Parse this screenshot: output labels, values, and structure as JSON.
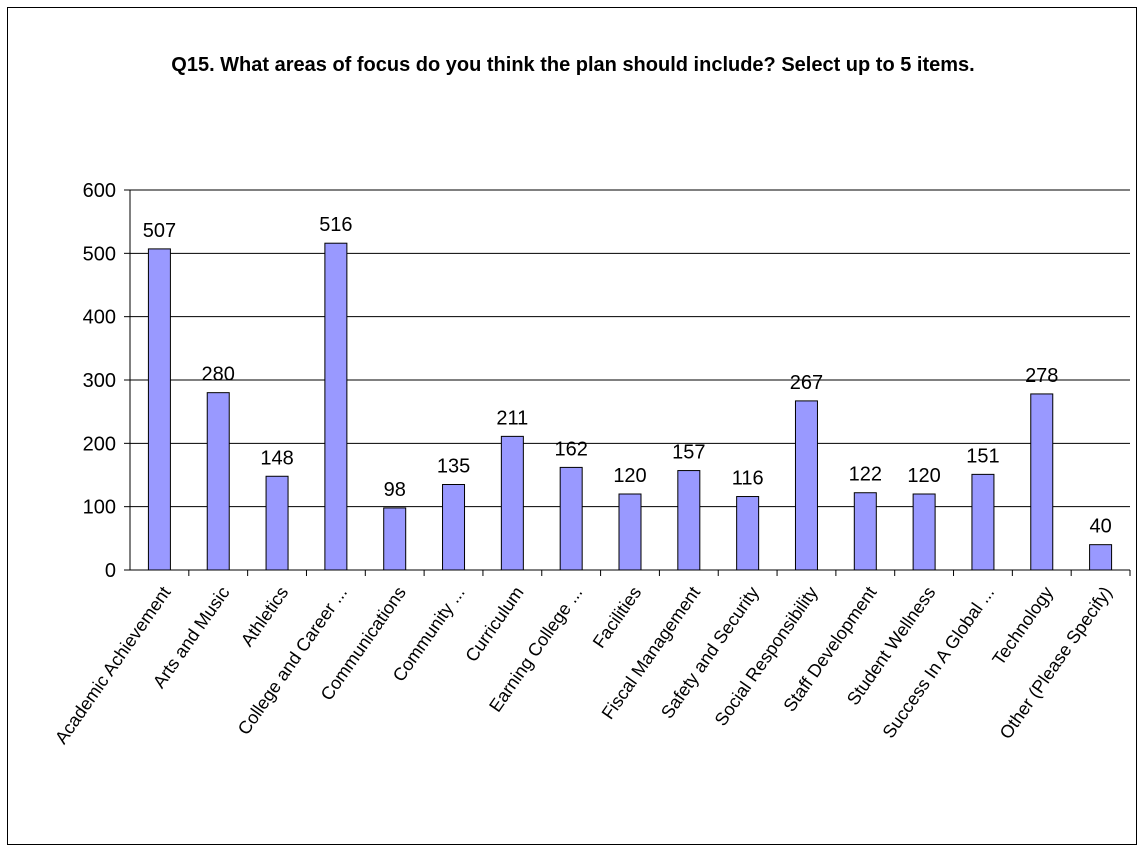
{
  "chart_data": {
    "type": "bar",
    "title": "Q15. What areas of focus do you think the plan should include? Select up to 5 items.",
    "categories": [
      "Academic Achievement",
      "Arts and Music",
      "Athletics",
      "College and Career ...",
      "Communications",
      "Community ...",
      "Curriculum",
      "Earning College ...",
      "Facilities",
      "Fiscal Management",
      "Safety and Security",
      "Social Responsibility",
      "Staff Development",
      "Student Wellness",
      "Success In A Global ...",
      "Technology",
      "Other (Please Specify)"
    ],
    "values": [
      507,
      280,
      148,
      516,
      98,
      135,
      211,
      162,
      120,
      157,
      116,
      267,
      122,
      120,
      151,
      278,
      40
    ],
    "ylim": [
      0,
      600
    ],
    "yticks": [
      0,
      100,
      200,
      300,
      400,
      500,
      600
    ],
    "xlabel": "",
    "ylabel": "",
    "grid": true,
    "data_labels": true,
    "colors": {
      "bar_fill": "#9999ff",
      "bar_stroke": "#000000",
      "grid": "#000000"
    }
  }
}
